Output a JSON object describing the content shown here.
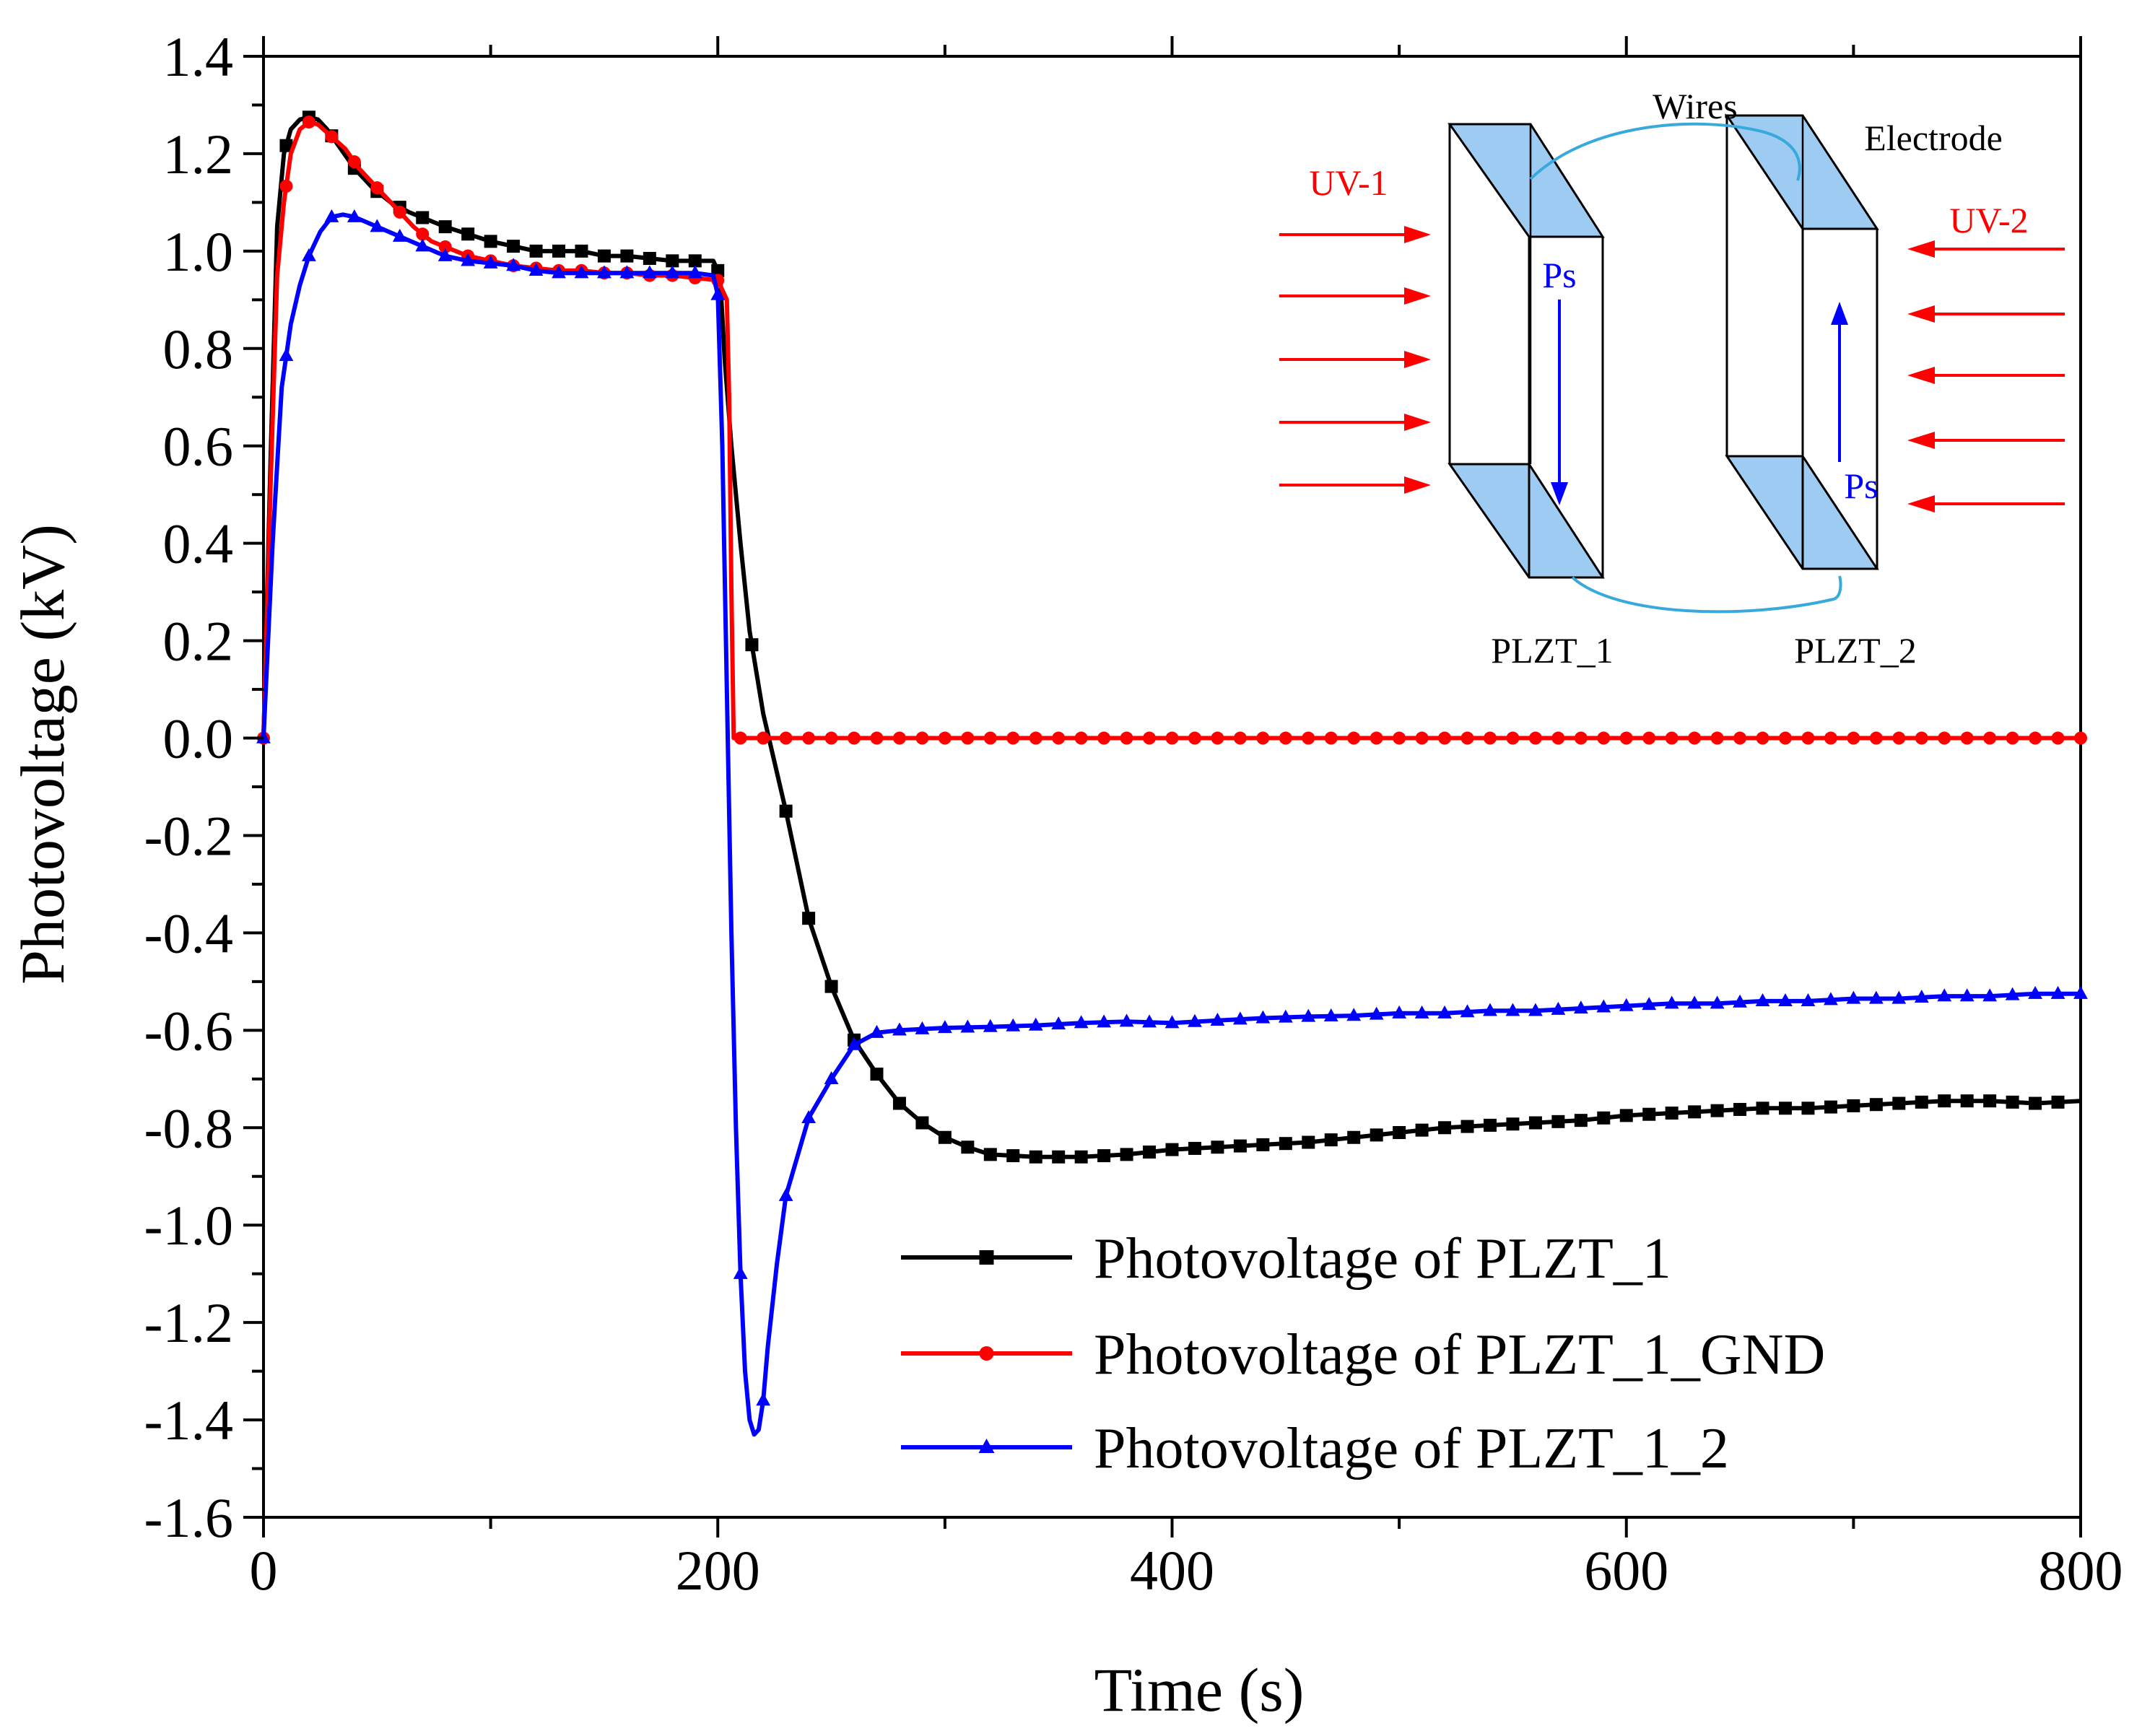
{
  "chart_data": {
    "type": "line",
    "title": "",
    "xlabel": "Time (s)",
    "ylabel": "Photovoltage (kV)",
    "xlim": [
      0,
      800
    ],
    "ylim": [
      -1.6,
      1.4
    ],
    "x_ticks": [
      "0",
      "200",
      "400",
      "600",
      "800"
    ],
    "y_ticks": [
      "-1.6",
      "-1.4",
      "-1.2",
      "-1.0",
      "-0.8",
      "-0.6",
      "-0.4",
      "-0.2",
      "0.0",
      "0.2",
      "0.4",
      "0.6",
      "0.8",
      "1.0",
      "1.2",
      "1.4"
    ],
    "grid": false,
    "legend_position": "bottom-right",
    "series": [
      {
        "name": "Photovoltage of PLZT_1",
        "color": "#000000",
        "marker": "square",
        "points": [
          [
            0,
            0
          ],
          [
            3,
            0.55
          ],
          [
            6,
            1.05
          ],
          [
            9,
            1.2
          ],
          [
            12,
            1.25
          ],
          [
            16,
            1.27
          ],
          [
            20,
            1.275
          ],
          [
            24,
            1.27
          ],
          [
            28,
            1.25
          ],
          [
            34,
            1.21
          ],
          [
            40,
            1.17
          ],
          [
            48,
            1.13
          ],
          [
            56,
            1.1
          ],
          [
            64,
            1.08
          ],
          [
            72,
            1.065
          ],
          [
            80,
            1.05
          ],
          [
            90,
            1.035
          ],
          [
            100,
            1.02
          ],
          [
            110,
            1.01
          ],
          [
            120,
            1.0
          ],
          [
            130,
            1.0
          ],
          [
            140,
            1.0
          ],
          [
            150,
            0.99
          ],
          [
            160,
            0.99
          ],
          [
            170,
            0.985
          ],
          [
            180,
            0.98
          ],
          [
            190,
            0.98
          ],
          [
            198,
            0.98
          ],
          [
            201,
            0.95
          ],
          [
            203,
            0.78
          ],
          [
            206,
            0.6
          ],
          [
            210,
            0.4
          ],
          [
            214,
            0.22
          ],
          [
            220,
            0.05
          ],
          [
            230,
            -0.15
          ],
          [
            240,
            -0.37
          ],
          [
            250,
            -0.51
          ],
          [
            260,
            -0.62
          ],
          [
            270,
            -0.69
          ],
          [
            280,
            -0.75
          ],
          [
            290,
            -0.79
          ],
          [
            300,
            -0.82
          ],
          [
            310,
            -0.84
          ],
          [
            320,
            -0.855
          ],
          [
            340,
            -0.86
          ],
          [
            360,
            -0.86
          ],
          [
            380,
            -0.855
          ],
          [
            400,
            -0.845
          ],
          [
            420,
            -0.84
          ],
          [
            440,
            -0.835
          ],
          [
            460,
            -0.83
          ],
          [
            480,
            -0.82
          ],
          [
            500,
            -0.81
          ],
          [
            520,
            -0.8
          ],
          [
            540,
            -0.795
          ],
          [
            560,
            -0.79
          ],
          [
            580,
            -0.785
          ],
          [
            600,
            -0.775
          ],
          [
            620,
            -0.77
          ],
          [
            640,
            -0.765
          ],
          [
            660,
            -0.76
          ],
          [
            680,
            -0.76
          ],
          [
            700,
            -0.755
          ],
          [
            720,
            -0.75
          ],
          [
            740,
            -0.745
          ],
          [
            760,
            -0.745
          ],
          [
            780,
            -0.75
          ],
          [
            800,
            -0.745
          ]
        ],
        "marker_x": [
          10,
          20,
          30,
          40,
          50,
          60,
          70,
          80,
          90,
          100,
          110,
          120,
          130,
          140,
          150,
          160,
          170,
          180,
          190,
          200,
          215,
          230,
          240,
          250,
          260,
          270,
          280,
          290,
          300,
          310,
          320,
          330,
          340,
          350,
          360,
          370,
          380,
          390,
          400,
          410,
          420,
          430,
          440,
          450,
          460,
          470,
          480,
          490,
          500,
          510,
          520,
          530,
          540,
          550,
          560,
          570,
          580,
          590,
          600,
          610,
          620,
          630,
          640,
          650,
          660,
          670,
          680,
          690,
          700,
          710,
          720,
          730,
          740,
          750,
          760,
          770,
          780,
          790
        ]
      },
      {
        "name": "Photovoltage of PLZT_1_GND",
        "color": "#ff0000",
        "marker": "circle",
        "points": [
          [
            0,
            0
          ],
          [
            3,
            0.5
          ],
          [
            6,
            0.95
          ],
          [
            9,
            1.1
          ],
          [
            12,
            1.2
          ],
          [
            16,
            1.25
          ],
          [
            20,
            1.265
          ],
          [
            24,
            1.26
          ],
          [
            30,
            1.235
          ],
          [
            36,
            1.21
          ],
          [
            42,
            1.17
          ],
          [
            50,
            1.13
          ],
          [
            58,
            1.09
          ],
          [
            66,
            1.05
          ],
          [
            74,
            1.02
          ],
          [
            82,
            1.005
          ],
          [
            90,
            0.99
          ],
          [
            100,
            0.98
          ],
          [
            110,
            0.97
          ],
          [
            120,
            0.965
          ],
          [
            130,
            0.96
          ],
          [
            140,
            0.96
          ],
          [
            150,
            0.955
          ],
          [
            160,
            0.955
          ],
          [
            170,
            0.95
          ],
          [
            180,
            0.95
          ],
          [
            190,
            0.945
          ],
          [
            200,
            0.94
          ],
          [
            204,
            0.9
          ],
          [
            205,
            0.7
          ],
          [
            206,
            0.3
          ],
          [
            207,
            0.0
          ],
          [
            220,
            0.0
          ],
          [
            400,
            0.0
          ],
          [
            600,
            0.0
          ],
          [
            800,
            0.0
          ]
        ],
        "marker_x": [
          0,
          10,
          20,
          30,
          40,
          50,
          60,
          70,
          80,
          90,
          100,
          110,
          120,
          130,
          140,
          150,
          160,
          170,
          180,
          190,
          200,
          210,
          220,
          230,
          240,
          250,
          260,
          270,
          280,
          290,
          300,
          310,
          320,
          330,
          340,
          350,
          360,
          370,
          380,
          390,
          400,
          410,
          420,
          430,
          440,
          450,
          460,
          470,
          480,
          490,
          500,
          510,
          520,
          530,
          540,
          550,
          560,
          570,
          580,
          590,
          600,
          610,
          620,
          630,
          640,
          650,
          660,
          670,
          680,
          690,
          700,
          710,
          720,
          730,
          740,
          750,
          760,
          770,
          780,
          790,
          800
        ]
      },
      {
        "name": "Photovoltage of PLZT_1_2",
        "color": "#0000ff",
        "marker": "triangle",
        "points": [
          [
            0,
            0
          ],
          [
            4,
            0.4
          ],
          [
            8,
            0.72
          ],
          [
            12,
            0.85
          ],
          [
            16,
            0.93
          ],
          [
            20,
            0.99
          ],
          [
            25,
            1.04
          ],
          [
            30,
            1.07
          ],
          [
            35,
            1.075
          ],
          [
            40,
            1.07
          ],
          [
            50,
            1.05
          ],
          [
            60,
            1.03
          ],
          [
            70,
            1.01
          ],
          [
            80,
            0.99
          ],
          [
            90,
            0.98
          ],
          [
            100,
            0.975
          ],
          [
            110,
            0.97
          ],
          [
            120,
            0.96
          ],
          [
            130,
            0.955
          ],
          [
            140,
            0.955
          ],
          [
            150,
            0.955
          ],
          [
            160,
            0.955
          ],
          [
            170,
            0.955
          ],
          [
            180,
            0.955
          ],
          [
            190,
            0.955
          ],
          [
            198,
            0.95
          ],
          [
            200,
            0.91
          ],
          [
            202,
            0.6
          ],
          [
            204,
            0.1
          ],
          [
            206,
            -0.4
          ],
          [
            208,
            -0.8
          ],
          [
            210,
            -1.1
          ],
          [
            212,
            -1.3
          ],
          [
            214,
            -1.4
          ],
          [
            216,
            -1.43
          ],
          [
            218,
            -1.42
          ],
          [
            220,
            -1.36
          ],
          [
            222,
            -1.25
          ],
          [
            226,
            -1.08
          ],
          [
            230,
            -0.94
          ],
          [
            235,
            -0.86
          ],
          [
            240,
            -0.78
          ],
          [
            250,
            -0.7
          ],
          [
            260,
            -0.63
          ],
          [
            270,
            -0.605
          ],
          [
            280,
            -0.6
          ],
          [
            300,
            -0.595
          ],
          [
            320,
            -0.593
          ],
          [
            340,
            -0.59
          ],
          [
            360,
            -0.585
          ],
          [
            380,
            -0.582
          ],
          [
            400,
            -0.585
          ],
          [
            420,
            -0.58
          ],
          [
            440,
            -0.575
          ],
          [
            460,
            -0.572
          ],
          [
            480,
            -0.57
          ],
          [
            500,
            -0.565
          ],
          [
            520,
            -0.565
          ],
          [
            540,
            -0.56
          ],
          [
            560,
            -0.56
          ],
          [
            580,
            -0.555
          ],
          [
            600,
            -0.55
          ],
          [
            620,
            -0.545
          ],
          [
            640,
            -0.545
          ],
          [
            660,
            -0.54
          ],
          [
            680,
            -0.54
          ],
          [
            700,
            -0.535
          ],
          [
            720,
            -0.535
          ],
          [
            740,
            -0.53
          ],
          [
            760,
            -0.53
          ],
          [
            780,
            -0.525
          ],
          [
            800,
            -0.525
          ]
        ],
        "marker_x": [
          0,
          10,
          20,
          30,
          40,
          50,
          60,
          70,
          80,
          90,
          100,
          110,
          120,
          130,
          140,
          150,
          160,
          170,
          180,
          190,
          200,
          210,
          220,
          230,
          240,
          250,
          260,
          270,
          280,
          290,
          300,
          310,
          320,
          330,
          340,
          350,
          360,
          370,
          380,
          390,
          400,
          410,
          420,
          430,
          440,
          450,
          460,
          470,
          480,
          490,
          500,
          510,
          520,
          530,
          540,
          550,
          560,
          570,
          580,
          590,
          600,
          610,
          620,
          630,
          640,
          650,
          660,
          670,
          680,
          690,
          700,
          710,
          720,
          730,
          740,
          750,
          760,
          770,
          780,
          790,
          800
        ]
      }
    ],
    "inset": {
      "labels": {
        "uv1": "UV-1",
        "uv2": "UV-2",
        "wires": "Wires",
        "electrode": "Electrode",
        "ps_left": "Ps",
        "ps_right": "Ps",
        "plzt1": "PLZT_1",
        "plzt2": "PLZT_2"
      },
      "colors": {
        "uv_arrow": "#ff0000",
        "electrode": "#9ecbf2",
        "wire": "#38a9dc",
        "polarization": "#0000ff"
      }
    }
  }
}
